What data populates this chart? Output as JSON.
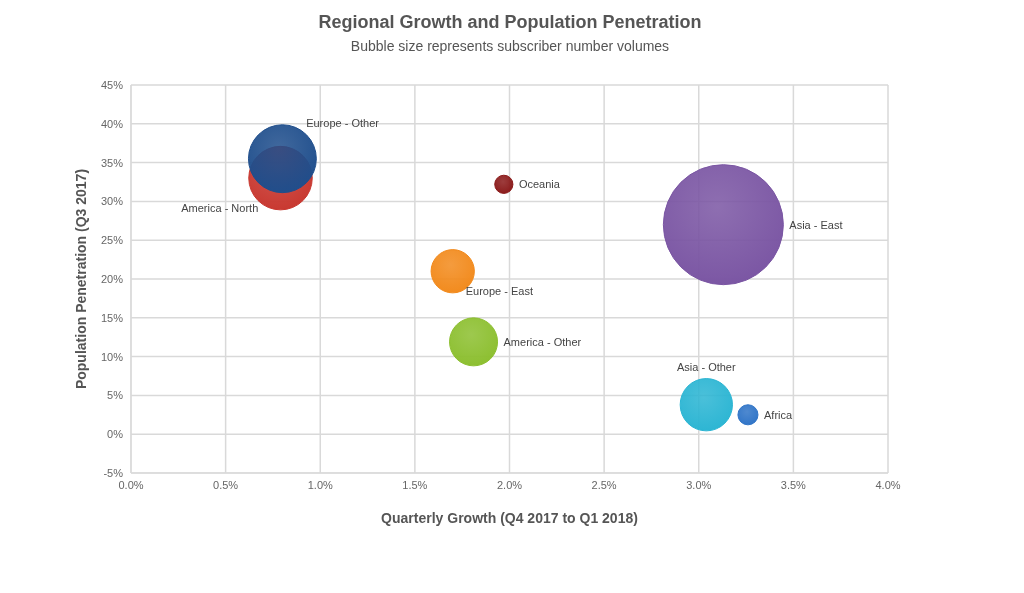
{
  "chart_data": {
    "type": "bubble",
    "title": "Regional Growth and Population Penetration",
    "subtitle": "Bubble size represents subscriber number volumes",
    "xlabel": "Quarterly Growth (Q4 2017 to Q1 2018)",
    "ylabel": "Population Penetration (Q3 2017)",
    "xlim": [
      0,
      4
    ],
    "xticks": [
      {
        "value": 0,
        "label": "0.0%"
      },
      {
        "value": 0.5,
        "label": "0.5%"
      },
      {
        "value": 1,
        "label": "1.0%"
      },
      {
        "value": 1.5,
        "label": "1.5%"
      },
      {
        "value": 2,
        "label": "2.0%"
      },
      {
        "value": 2.5,
        "label": "2.5%"
      },
      {
        "value": 3,
        "label": "3.0%"
      },
      {
        "value": 3.5,
        "label": "3.5%"
      },
      {
        "value": 4,
        "label": "4.0%"
      }
    ],
    "ylim": [
      -5,
      45
    ],
    "yticks": [
      {
        "value": -5,
        "label": "-5%"
      },
      {
        "value": 0,
        "label": "0%"
      },
      {
        "value": 5,
        "label": "5%"
      },
      {
        "value": 10,
        "label": "10%"
      },
      {
        "value": 15,
        "label": "15%"
      },
      {
        "value": 20,
        "label": "20%"
      },
      {
        "value": 25,
        "label": "25%"
      },
      {
        "value": 30,
        "label": "30%"
      },
      {
        "value": 35,
        "label": "35%"
      },
      {
        "value": 40,
        "label": "40%"
      },
      {
        "value": 45,
        "label": "45%"
      }
    ],
    "grid": true,
    "series": [
      {
        "name": "America - North",
        "color": "#c8372f",
        "x": [
          0.79
        ],
        "values": [
          33
        ],
        "sizes": [
          0.28
        ]
      },
      {
        "name": "Europe - Other",
        "color": "#1f4e8c",
        "x": [
          0.8
        ],
        "values": [
          35.5
        ],
        "sizes": [
          0.32
        ]
      },
      {
        "name": "Oceania",
        "color": "#8b1a1a",
        "x": [
          1.97
        ],
        "values": [
          32.2
        ],
        "sizes": [
          0.023
        ]
      },
      {
        "name": "Europe - East",
        "color": "#f28a1c",
        "x": [
          1.7
        ],
        "values": [
          21
        ],
        "sizes": [
          0.13
        ]
      },
      {
        "name": "America - Other",
        "color": "#8cbf2f",
        "x": [
          1.81
        ],
        "values": [
          11.9
        ],
        "sizes": [
          0.16
        ]
      },
      {
        "name": "Asia - East",
        "color": "#7a55a3",
        "x": [
          3.13
        ],
        "values": [
          27
        ],
        "sizes": [
          1
        ]
      },
      {
        "name": "Asia - Other",
        "color": "#2bb5d3",
        "x": [
          3.04
        ],
        "values": [
          3.8
        ],
        "sizes": [
          0.19
        ]
      },
      {
        "name": "Africa",
        "color": "#2f74c7",
        "x": [
          3.26
        ],
        "values": [
          2.5
        ],
        "sizes": [
          0.028
        ]
      }
    ]
  }
}
